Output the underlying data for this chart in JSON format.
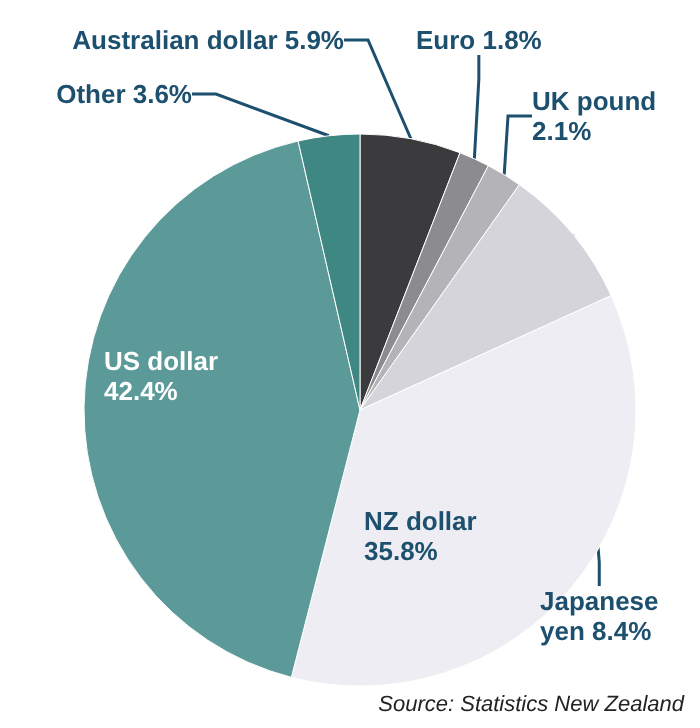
{
  "chart_data": {
    "type": "pie",
    "categories": [
      "Australian dollar",
      "Euro",
      "UK pound",
      "Japanese yen",
      "NZ dollar",
      "US dollar",
      "Other"
    ],
    "values": [
      5.9,
      1.8,
      2.1,
      8.4,
      35.8,
      42.4,
      3.6
    ],
    "value_labels": [
      "5.9%",
      "1.8%",
      "2.1%",
      "8.4%",
      "35.8%",
      "42.4%",
      "3.6%"
    ],
    "colors": [
      "#3b3b3d",
      "#8c8c90",
      "#b4b4b8",
      "#d4d4da",
      "#ededf3",
      "#5b9a98",
      "#3e8783"
    ],
    "annotations": [
      "Source: Statistics New Zealand"
    ]
  }
}
